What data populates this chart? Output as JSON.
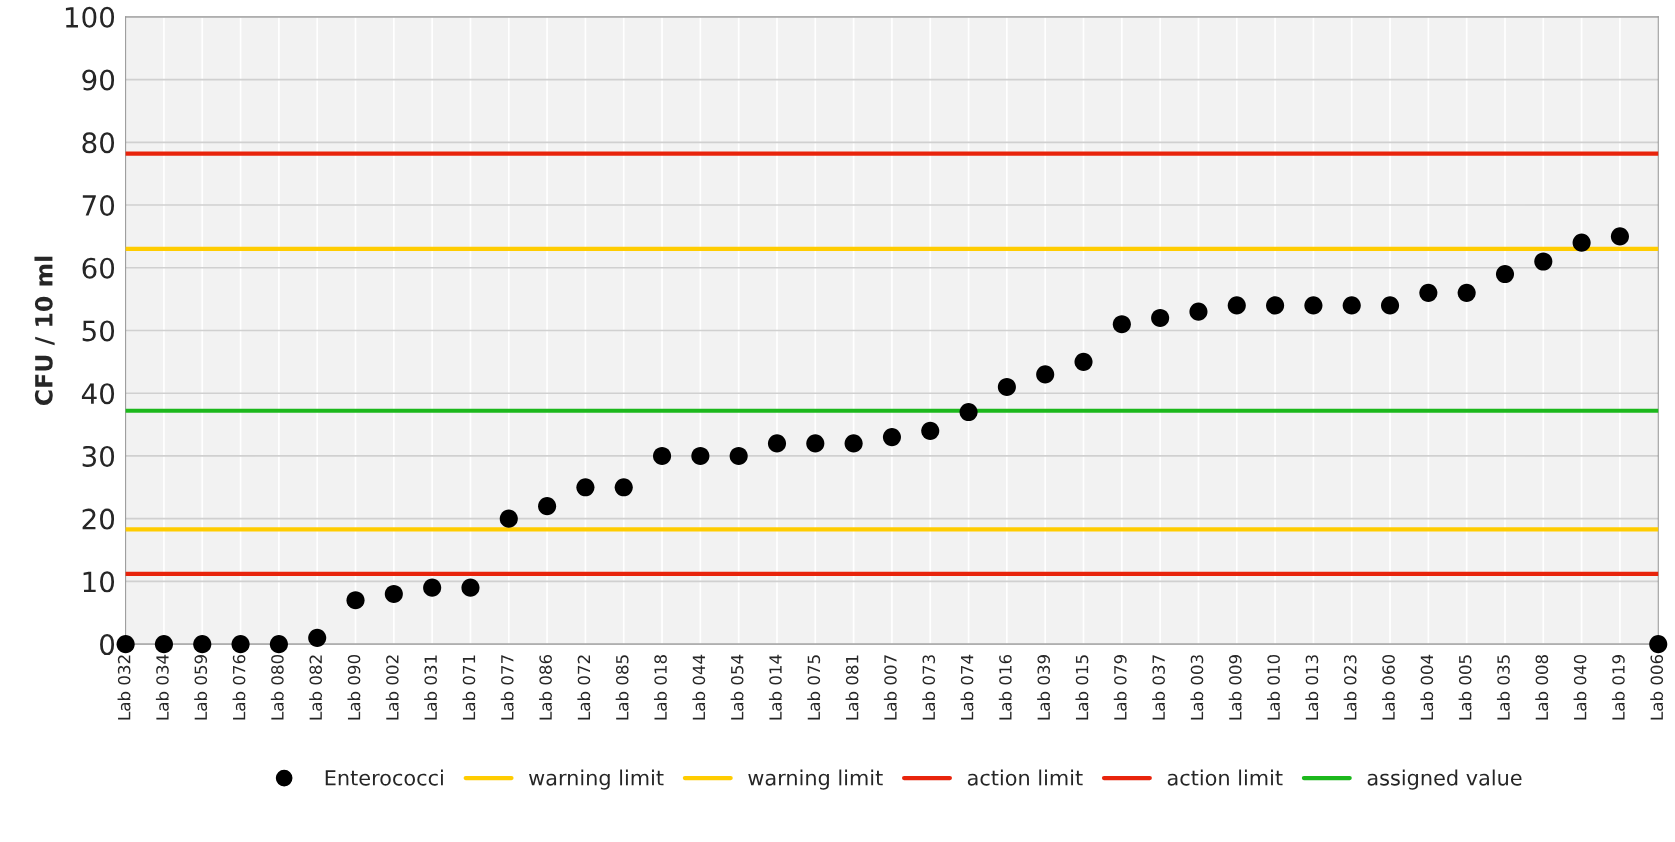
{
  "chart_data": {
    "type": "scatter",
    "ylabel": "CFU / 10 ml",
    "categories": [
      "Lab 032",
      "Lab 034",
      "Lab 059",
      "Lab 076",
      "Lab 080",
      "Lab 082",
      "Lab 090",
      "Lab 002",
      "Lab 031",
      "Lab 071",
      "Lab 077",
      "Lab 086",
      "Lab 072",
      "Lab 085",
      "Lab 018",
      "Lab 044",
      "Lab 054",
      "Lab 014",
      "Lab 075",
      "Lab 081",
      "Lab 007",
      "Lab 073",
      "Lab 074",
      "Lab 016",
      "Lab 039",
      "Lab 015",
      "Lab 079",
      "Lab 037",
      "Lab 003",
      "Lab 009",
      "Lab 010",
      "Lab 013",
      "Lab 023",
      "Lab 060",
      "Lab 004",
      "Lab 005",
      "Lab 035",
      "Lab 008",
      "Lab 040",
      "Lab 019",
      "Lab 006"
    ],
    "series": [
      {
        "name": "Enterococci",
        "color": "#000000",
        "values": [
          0,
          0,
          0,
          0,
          0,
          1,
          7,
          8,
          9,
          9,
          20,
          22,
          25,
          25,
          30,
          30,
          30,
          32,
          32,
          32,
          33,
          34,
          37,
          41,
          43,
          45,
          51,
          52,
          53,
          54,
          54,
          54,
          54,
          54,
          56,
          56,
          59,
          61,
          64,
          65,
          0
        ]
      }
    ],
    "ref_lines": [
      {
        "axis": "y",
        "value": 18.3,
        "label": "warning limit",
        "color": "#ffcc00"
      },
      {
        "axis": "y",
        "value": 63,
        "label": "warning limit",
        "color": "#ffcc00"
      },
      {
        "axis": "y",
        "value": 11.2,
        "label": "action limit",
        "color": "#e8240c"
      },
      {
        "axis": "y",
        "value": 78.2,
        "label": "action limit",
        "color": "#e8240c"
      },
      {
        "axis": "y",
        "value": 37.2,
        "label": "assigned value",
        "color": "#1cb81c"
      }
    ],
    "ylim": [
      0,
      100
    ],
    "yticks": [
      0,
      10,
      20,
      30,
      40,
      50,
      60,
      70,
      80,
      90,
      100
    ],
    "grid": true,
    "legend": "bottom",
    "marker": "circle"
  }
}
